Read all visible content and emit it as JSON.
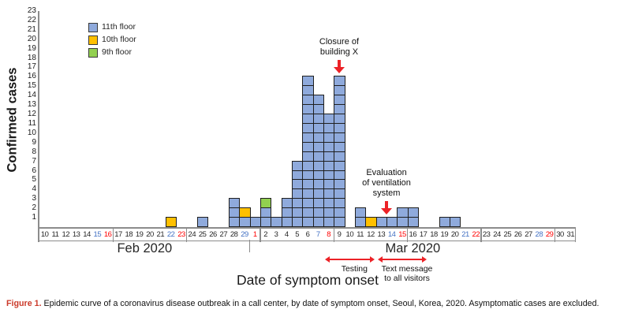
{
  "figure_texts": {
    "y_axis_title": "Confirmed cases",
    "x_axis_title": "Date of symptom onset"
  },
  "colors": {
    "saturday_label": "#4472C4",
    "sunday_label": "#FF0000",
    "weekday_label": "#262626",
    "axis_line": "#8C8C8C",
    "square_border": "#1F1F1F",
    "annotation_arrow": "#EC2227",
    "annotation_text": "#111111",
    "caption_label": "#CB3A2A"
  },
  "chart_data": {
    "type": "bar",
    "stacked": true,
    "title": "",
    "ylabel": "Confirmed cases",
    "xlabel": "Date of symptom onset",
    "ylim": [
      0,
      23
    ],
    "y_tick_step": 1,
    "grid": false,
    "legend_position": "top-left-inside",
    "months": [
      {
        "key": "Feb",
        "label": "Feb 2020"
      },
      {
        "key": "Mar",
        "label": "Mar 2020"
      }
    ],
    "floors": [
      {
        "name": "11th floor",
        "color": "#8FAADC"
      },
      {
        "name": "10th floor",
        "color": "#FFC000"
      },
      {
        "name": "9th floor",
        "color": "#92D050"
      }
    ],
    "stack_order": [
      "11th floor",
      "10th floor",
      "9th floor"
    ],
    "dates": [
      {
        "m": "Feb",
        "d": 10
      },
      {
        "m": "Feb",
        "d": 11
      },
      {
        "m": "Feb",
        "d": 12
      },
      {
        "m": "Feb",
        "d": 13
      },
      {
        "m": "Feb",
        "d": 14
      },
      {
        "m": "Feb",
        "d": 15,
        "w": "sat"
      },
      {
        "m": "Feb",
        "d": 16,
        "w": "sun"
      },
      {
        "m": "Feb",
        "d": 17
      },
      {
        "m": "Feb",
        "d": 18
      },
      {
        "m": "Feb",
        "d": 19
      },
      {
        "m": "Feb",
        "d": 20
      },
      {
        "m": "Feb",
        "d": 21
      },
      {
        "m": "Feb",
        "d": 22,
        "w": "sat"
      },
      {
        "m": "Feb",
        "d": 23,
        "w": "sun"
      },
      {
        "m": "Feb",
        "d": 24
      },
      {
        "m": "Feb",
        "d": 25
      },
      {
        "m": "Feb",
        "d": 26
      },
      {
        "m": "Feb",
        "d": 27
      },
      {
        "m": "Feb",
        "d": 28
      },
      {
        "m": "Feb",
        "d": 29,
        "w": "sat"
      },
      {
        "m": "Mar",
        "d": 1,
        "w": "sun"
      },
      {
        "m": "Mar",
        "d": 2
      },
      {
        "m": "Mar",
        "d": 3
      },
      {
        "m": "Mar",
        "d": 4
      },
      {
        "m": "Mar",
        "d": 5
      },
      {
        "m": "Mar",
        "d": 6
      },
      {
        "m": "Mar",
        "d": 7,
        "w": "sat"
      },
      {
        "m": "Mar",
        "d": 8,
        "w": "sun"
      },
      {
        "m": "Mar",
        "d": 9
      },
      {
        "m": "Mar",
        "d": 10
      },
      {
        "m": "Mar",
        "d": 11
      },
      {
        "m": "Mar",
        "d": 12
      },
      {
        "m": "Mar",
        "d": 13
      },
      {
        "m": "Mar",
        "d": 14,
        "w": "sat"
      },
      {
        "m": "Mar",
        "d": 15,
        "w": "sun"
      },
      {
        "m": "Mar",
        "d": 16
      },
      {
        "m": "Mar",
        "d": 17
      },
      {
        "m": "Mar",
        "d": 18
      },
      {
        "m": "Mar",
        "d": 19
      },
      {
        "m": "Mar",
        "d": 20
      },
      {
        "m": "Mar",
        "d": 21,
        "w": "sat"
      },
      {
        "m": "Mar",
        "d": 22,
        "w": "sun"
      },
      {
        "m": "Mar",
        "d": 23
      },
      {
        "m": "Mar",
        "d": 24
      },
      {
        "m": "Mar",
        "d": 25
      },
      {
        "m": "Mar",
        "d": 26
      },
      {
        "m": "Mar",
        "d": 27
      },
      {
        "m": "Mar",
        "d": 28,
        "w": "sat"
      },
      {
        "m": "Mar",
        "d": 29,
        "w": "sun"
      },
      {
        "m": "Mar",
        "d": 30
      },
      {
        "m": "Mar",
        "d": 31
      }
    ],
    "cases": [
      {
        "m": "Feb",
        "d": 22,
        "counts": {
          "10th floor": 1
        }
      },
      {
        "m": "Feb",
        "d": 25,
        "counts": {
          "11th floor": 1
        }
      },
      {
        "m": "Feb",
        "d": 28,
        "counts": {
          "11th floor": 3
        }
      },
      {
        "m": "Feb",
        "d": 29,
        "counts": {
          "11th floor": 1,
          "10th floor": 1
        }
      },
      {
        "m": "Mar",
        "d": 1,
        "counts": {
          "11th floor": 1
        }
      },
      {
        "m": "Mar",
        "d": 2,
        "counts": {
          "11th floor": 2,
          "9th floor": 1
        }
      },
      {
        "m": "Mar",
        "d": 3,
        "counts": {
          "11th floor": 1
        }
      },
      {
        "m": "Mar",
        "d": 4,
        "counts": {
          "11th floor": 3
        }
      },
      {
        "m": "Mar",
        "d": 5,
        "counts": {
          "11th floor": 7
        }
      },
      {
        "m": "Mar",
        "d": 6,
        "counts": {
          "11th floor": 16
        }
      },
      {
        "m": "Mar",
        "d": 7,
        "counts": {
          "11th floor": 14
        }
      },
      {
        "m": "Mar",
        "d": 8,
        "counts": {
          "11th floor": 12
        }
      },
      {
        "m": "Mar",
        "d": 9,
        "counts": {
          "11th floor": 16
        }
      },
      {
        "m": "Mar",
        "d": 11,
        "counts": {
          "11th floor": 2
        }
      },
      {
        "m": "Mar",
        "d": 12,
        "counts": {
          "10th floor": 1
        }
      },
      {
        "m": "Mar",
        "d": 13,
        "counts": {
          "11th floor": 1
        }
      },
      {
        "m": "Mar",
        "d": 14,
        "counts": {
          "11th floor": 1
        }
      },
      {
        "m": "Mar",
        "d": 15,
        "counts": {
          "11th floor": 2
        }
      },
      {
        "m": "Mar",
        "d": 16,
        "counts": {
          "11th floor": 2
        }
      },
      {
        "m": "Mar",
        "d": 19,
        "counts": {
          "11th floor": 1
        }
      },
      {
        "m": "Mar",
        "d": 20,
        "counts": {
          "11th floor": 1
        }
      }
    ]
  },
  "annotations": [
    {
      "id": "closure",
      "lines": [
        "Closure of",
        "building X"
      ],
      "arrow": "down",
      "anchor": {
        "month": "Mar",
        "day": 9
      }
    },
    {
      "id": "ventilation",
      "lines": [
        "Evaluation",
        "of ventilation",
        "system"
      ],
      "arrow": "down",
      "anchor": {
        "month": "Mar",
        "day": 13.5
      }
    }
  ],
  "interventions": [
    {
      "id": "testing",
      "label_lines": [
        "Testing"
      ],
      "from": {
        "month": "Mar",
        "day": 8
      },
      "to": {
        "month": "Mar",
        "day": 12
      }
    },
    {
      "id": "text-message",
      "label_lines": [
        "Text message",
        "to all visitors"
      ],
      "from": {
        "month": "Mar",
        "day": 13
      },
      "to": {
        "month": "Mar",
        "day": 17
      }
    }
  ],
  "caption": {
    "label": "Figure 1.",
    "text": "Epidemic curve of a coronavirus disease outbreak in a call center, by date of symptom onset, Seoul, Korea, 2020. Asymptomatic cases are excluded."
  }
}
